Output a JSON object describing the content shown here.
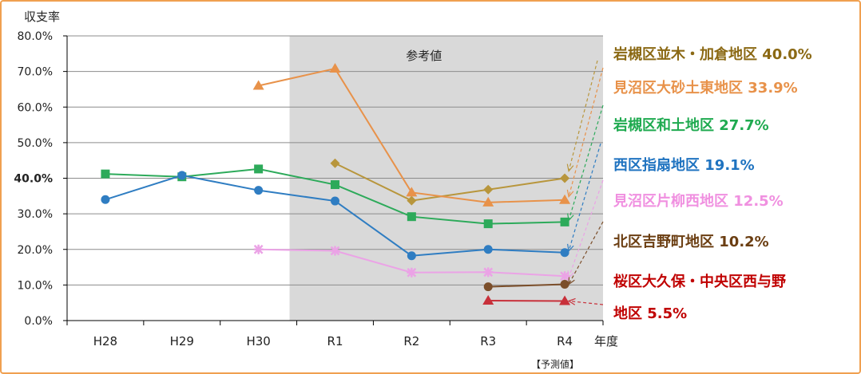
{
  "chart_data": {
    "type": "line",
    "ylabel": "収支率",
    "xlabel": "年度",
    "categories": [
      "H28",
      "H29",
      "H30",
      "R1",
      "R2",
      "R3",
      "R4"
    ],
    "x_note": "【予測値】",
    "ylim": [
      0,
      80
    ],
    "yticks": [
      "0.0%",
      "10.0%",
      "20.0%",
      "30.0%",
      "40.0%",
      "50.0%",
      "60.0%",
      "70.0%",
      "80.0%"
    ],
    "y_bold_tick": "40.0%",
    "shaded_region": {
      "label": "参考値",
      "from": "R1",
      "to": "R4"
    },
    "grid": true,
    "series": [
      {
        "name": "岩槻区並木・加倉地区",
        "value_label": "40.0%",
        "color": "#B8963C",
        "text_color": "#8B6914",
        "marker": "diamond",
        "values": [
          null,
          null,
          null,
          44.2,
          33.7,
          36.8,
          40.0
        ]
      },
      {
        "name": "見沼区大砂土東地区",
        "value_label": "33.9%",
        "color": "#E8924A",
        "text_color": "#E8924A",
        "marker": "triangle",
        "values": [
          null,
          null,
          66.0,
          70.8,
          36.0,
          33.2,
          33.9
        ]
      },
      {
        "name": "岩槻区和土地区",
        "value_label": "27.7%",
        "color": "#2DAA5A",
        "text_color": "#1FAA50",
        "marker": "square",
        "values": [
          41.2,
          40.4,
          42.6,
          38.2,
          29.2,
          27.2,
          27.7
        ]
      },
      {
        "name": "西区指扇地区",
        "value_label": "19.1%",
        "color": "#2F7DC2",
        "text_color": "#1F73C0",
        "marker": "circle",
        "values": [
          34.0,
          40.8,
          36.6,
          33.6,
          18.2,
          20.0,
          19.1
        ]
      },
      {
        "name": "見沼区片柳西地区",
        "value_label": "12.5%",
        "color": "#EBA3E6",
        "text_color": "#F090E0",
        "marker": "asterisk",
        "values": [
          null,
          null,
          20.0,
          19.6,
          13.5,
          13.6,
          12.5
        ]
      },
      {
        "name": "北区吉野町地区",
        "value_label": "10.2%",
        "color": "#7B4E2A",
        "text_color": "#6B3E12",
        "marker": "circle",
        "values": [
          null,
          null,
          null,
          null,
          null,
          9.5,
          10.2
        ]
      },
      {
        "name": "桜区大久保・中央区西与野",
        "name_line2": "地区",
        "value_label": "5.5%",
        "color": "#C8303A",
        "text_color": "#C00000",
        "marker": "triangle",
        "values": [
          null,
          null,
          null,
          null,
          null,
          5.6,
          5.5
        ]
      }
    ]
  }
}
